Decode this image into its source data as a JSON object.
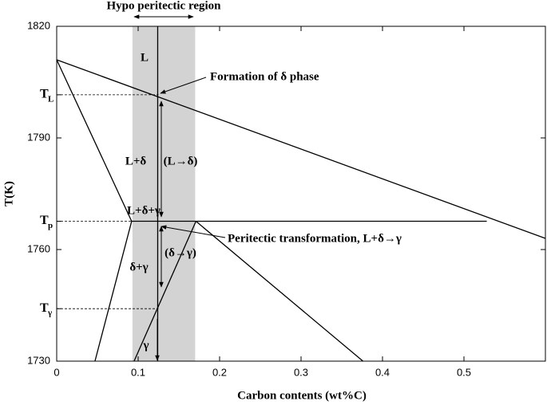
{
  "chart_data": {
    "type": "line",
    "title": "Hypo peritectic region",
    "x_label": "Carbon contents (wt%C)",
    "y_label": "T(K)",
    "xlim": [
      0,
      0.6
    ],
    "ylim": [
      1730,
      1820
    ],
    "xticks": [
      0,
      0.1,
      0.2,
      0.3,
      0.4,
      0.5
    ],
    "yticks": [
      1820,
      1790,
      1760,
      1730,
      {
        "value": 1801.6,
        "label": "T",
        "sub": "L"
      },
      {
        "value": 1767.6,
        "label": "T",
        "sub": "p"
      },
      {
        "value": 1744.1,
        "label": "T",
        "sub": "γ"
      }
    ],
    "grid": false,
    "shaded_region": {
      "x": [
        0.093,
        0.17
      ],
      "color": "#d3d3d3"
    },
    "series": [
      {
        "x": [
          0,
          0.6
        ],
        "values": [
          1811,
          1763
        ],
        "color": "#000000"
      },
      {
        "x": [
          0,
          0.092
        ],
        "values": [
          1811,
          1767.6
        ],
        "color": "#000000"
      },
      {
        "x": [
          0.092,
          0.528
        ],
        "values": [
          1767.6,
          1767.6
        ],
        "color": "#000000"
      },
      {
        "x": [
          0.092,
          0.047
        ],
        "values": [
          1767.6,
          1730
        ],
        "color": "#000000"
      },
      {
        "x": [
          0.171,
          0.095
        ],
        "values": [
          1767.6,
          1730
        ],
        "color": "#000000"
      },
      {
        "x": [
          0.171,
          0.376
        ],
        "values": [
          1767.6,
          1730
        ],
        "color": "#000000"
      },
      {
        "x": [
          0.124,
          0.124
        ],
        "values": [
          1730,
          1820
        ],
        "color": "#000000"
      },
      {
        "x": [
          0,
          0.125
        ],
        "values": [
          1801.6,
          1801.6
        ],
        "color": "#000000",
        "dash": true
      },
      {
        "x": [
          0,
          0.092
        ],
        "values": [
          1767.6,
          1767.6
        ],
        "color": "#000000",
        "dash": true
      },
      {
        "x": [
          0,
          0.125
        ],
        "values": [
          1744.1,
          1744.1
        ],
        "color": "#000000",
        "dash": true
      }
    ],
    "annotations": [
      {
        "text": "L"
      },
      {
        "text": "Formation of δ phase"
      },
      {
        "text": "L+δ"
      },
      {
        "text": "(L→δ)"
      },
      {
        "text": "L+δ+γ"
      },
      {
        "text": "Peritectic transformation, L+δ→γ"
      },
      {
        "text": "(δ→γ)"
      },
      {
        "text": "δ+γ"
      },
      {
        "text": "γ"
      }
    ]
  }
}
